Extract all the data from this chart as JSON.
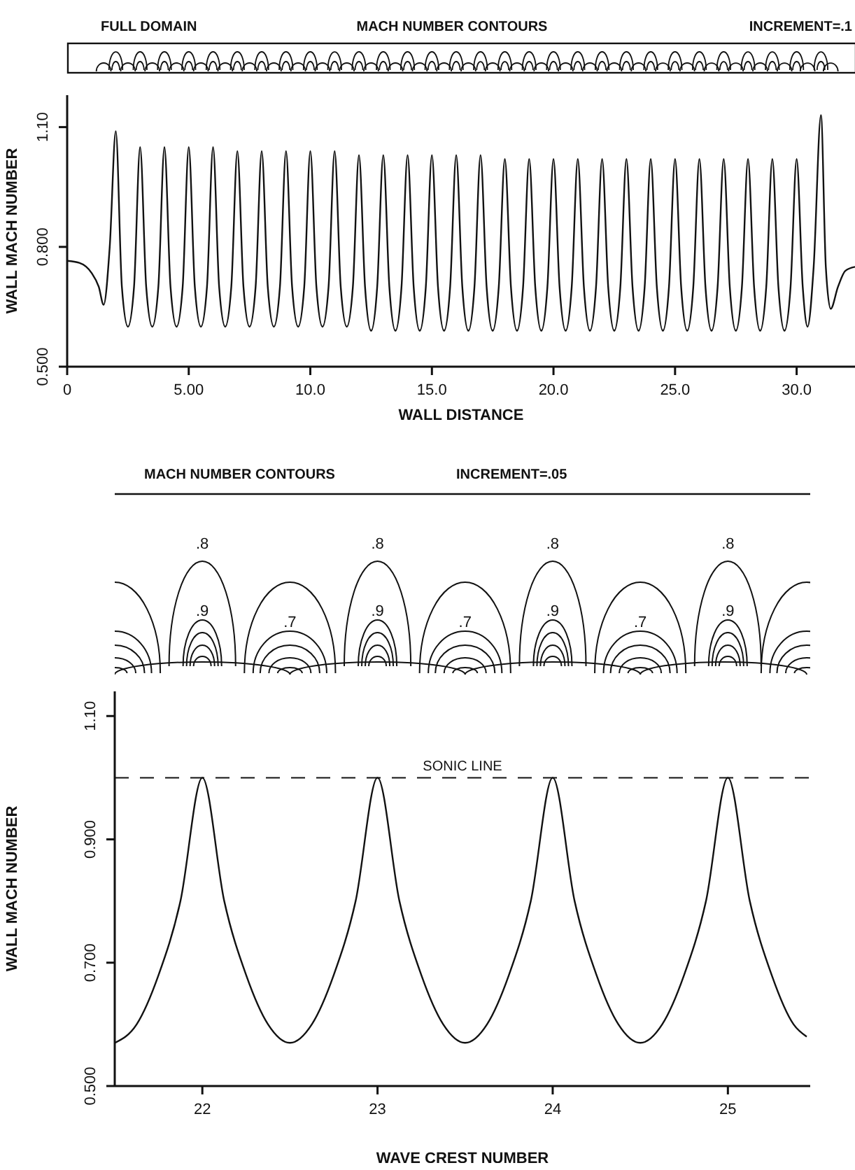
{
  "chart_data": [
    {
      "type": "line",
      "xlabel": "WALL DISTANCE",
      "ylabel": "WALL MACH NUMBER",
      "marker": "none",
      "annotations": [
        "FULL DOMAIN",
        "MACH NUMBER CONTOURS",
        "INCREMENT=.1"
      ],
      "x": [
        0,
        0.5,
        1,
        1.3,
        1.5,
        1.75,
        2,
        2.25,
        2.5,
        2.75,
        3,
        3.25,
        3.5,
        3.75,
        4,
        4.25,
        4.5,
        4.75,
        5,
        5.25,
        5.5,
        5.75,
        6,
        6.25,
        6.5,
        6.75,
        7,
        7.25,
        7.5,
        7.75,
        8,
        8.25,
        8.5,
        8.75,
        9,
        9.25,
        9.5,
        9.75,
        10,
        10.25,
        10.5,
        10.75,
        11,
        11.25,
        11.5,
        11.75,
        12,
        12.25,
        12.5,
        12.75,
        13,
        13.25,
        13.5,
        13.75,
        14,
        14.25,
        14.5,
        14.75,
        15,
        15.25,
        15.5,
        15.75,
        16,
        16.25,
        16.5,
        16.75,
        17,
        17.25,
        17.5,
        17.75,
        18,
        18.25,
        18.5,
        18.75,
        19,
        19.25,
        19.5,
        19.75,
        20,
        20.25,
        20.5,
        20.75,
        21,
        21.25,
        21.5,
        21.75,
        22,
        22.25,
        22.5,
        22.75,
        23,
        23.25,
        23.5,
        23.75,
        24,
        24.25,
        24.5,
        24.75,
        25,
        25.25,
        25.5,
        25.75,
        26,
        26.25,
        26.5,
        26.75,
        27,
        27.25,
        27.5,
        27.75,
        28,
        28.25,
        28.5,
        28.75,
        29,
        29.25,
        29.5,
        29.75,
        30,
        30.25,
        30.45,
        30.7,
        31,
        31.2,
        31.4,
        31.7,
        32,
        32.4
      ],
      "series": [
        {
          "color": "#111111",
          "values": [
            0.765,
            0.76,
            0.735,
            0.7,
            0.655,
            0.8,
            1.09,
            0.7,
            0.6,
            0.7,
            1.05,
            0.7,
            0.6,
            0.7,
            1.05,
            0.7,
            0.6,
            0.7,
            1.05,
            0.7,
            0.6,
            0.7,
            1.05,
            0.7,
            0.6,
            0.7,
            1.04,
            0.7,
            0.6,
            0.7,
            1.04,
            0.7,
            0.6,
            0.7,
            1.04,
            0.7,
            0.6,
            0.7,
            1.04,
            0.7,
            0.6,
            0.7,
            1.04,
            0.7,
            0.6,
            0.7,
            1.03,
            0.7,
            0.59,
            0.7,
            1.03,
            0.7,
            0.59,
            0.7,
            1.03,
            0.7,
            0.59,
            0.7,
            1.03,
            0.7,
            0.59,
            0.7,
            1.03,
            0.7,
            0.59,
            0.7,
            1.03,
            0.7,
            0.59,
            0.7,
            1.02,
            0.7,
            0.59,
            0.7,
            1.02,
            0.7,
            0.59,
            0.7,
            1.02,
            0.7,
            0.59,
            0.7,
            1.02,
            0.7,
            0.59,
            0.7,
            1.02,
            0.7,
            0.59,
            0.7,
            1.02,
            0.7,
            0.59,
            0.7,
            1.02,
            0.7,
            0.59,
            0.7,
            1.02,
            0.7,
            0.59,
            0.7,
            1.02,
            0.7,
            0.59,
            0.7,
            1.02,
            0.7,
            0.59,
            0.7,
            1.02,
            0.7,
            0.59,
            0.7,
            1.02,
            0.7,
            0.59,
            0.7,
            1.02,
            0.7,
            0.6,
            0.75,
            1.13,
            0.75,
            0.645,
            0.7,
            0.74,
            0.75
          ]
        }
      ],
      "xlim": [
        0,
        32.4
      ],
      "ylim": [
        0.5,
        1.18
      ],
      "xticks": [
        0,
        {
          "value": 5,
          "label": "5.00"
        },
        {
          "value": 10,
          "label": "10.0"
        },
        {
          "value": 15,
          "label": "15.0"
        },
        {
          "value": 20,
          "label": "20.0"
        },
        {
          "value": 25,
          "label": "25.0"
        },
        {
          "value": 30,
          "label": "30.0"
        }
      ],
      "yticks": [
        {
          "value": 0.5,
          "label": "0.500"
        },
        {
          "value": 0.8,
          "label": "0.800"
        },
        {
          "value": 1.1,
          "label": "1.10"
        }
      ]
    },
    {
      "type": "line",
      "xlabel": "WAVE CREST NUMBER",
      "ylabel": "WALL MACH NUMBER",
      "marker": "none",
      "annotations": [
        "MACH NUMBER CONTOURS",
        "INCREMENT=.05",
        ".8",
        ".9",
        ".7",
        ".8",
        ".9",
        ".7",
        ".8",
        ".9",
        ".7",
        ".8",
        ".9"
      ],
      "x": [
        21.5,
        21.625,
        21.75,
        21.875,
        22,
        22.125,
        22.25,
        22.375,
        22.5,
        22.625,
        22.75,
        22.875,
        23,
        23.125,
        23.25,
        23.375,
        23.5,
        23.625,
        23.75,
        23.875,
        24,
        24.125,
        24.25,
        24.375,
        24.5,
        24.625,
        24.75,
        24.875,
        25,
        25.125,
        25.25,
        25.375,
        25.45
      ],
      "series": [
        {
          "color": "#111111",
          "values": [
            0.57,
            0.6,
            0.68,
            0.8,
            1.0,
            0.8,
            0.68,
            0.6,
            0.57,
            0.6,
            0.68,
            0.8,
            1.0,
            0.8,
            0.68,
            0.6,
            0.57,
            0.6,
            0.68,
            0.8,
            1.0,
            0.8,
            0.68,
            0.6,
            0.57,
            0.6,
            0.68,
            0.8,
            1.0,
            0.8,
            0.68,
            0.6,
            0.58
          ]
        }
      ],
      "xlim": [
        21.5,
        25.47
      ],
      "ylim": [
        0.5,
        1.14
      ],
      "xticks": [
        22,
        23,
        24,
        25
      ],
      "yticks": [
        {
          "value": 0.5,
          "label": "0.500"
        },
        {
          "value": 0.7,
          "label": "0.700"
        },
        {
          "value": 0.9,
          "label": "0.900"
        },
        {
          "value": 1.1,
          "label": "1.10"
        }
      ],
      "ref_lines": [
        {
          "axis": "y",
          "value": 1.0,
          "label": "SONIC LINE",
          "line_style": "dashed",
          "color": "#111111"
        }
      ]
    }
  ]
}
